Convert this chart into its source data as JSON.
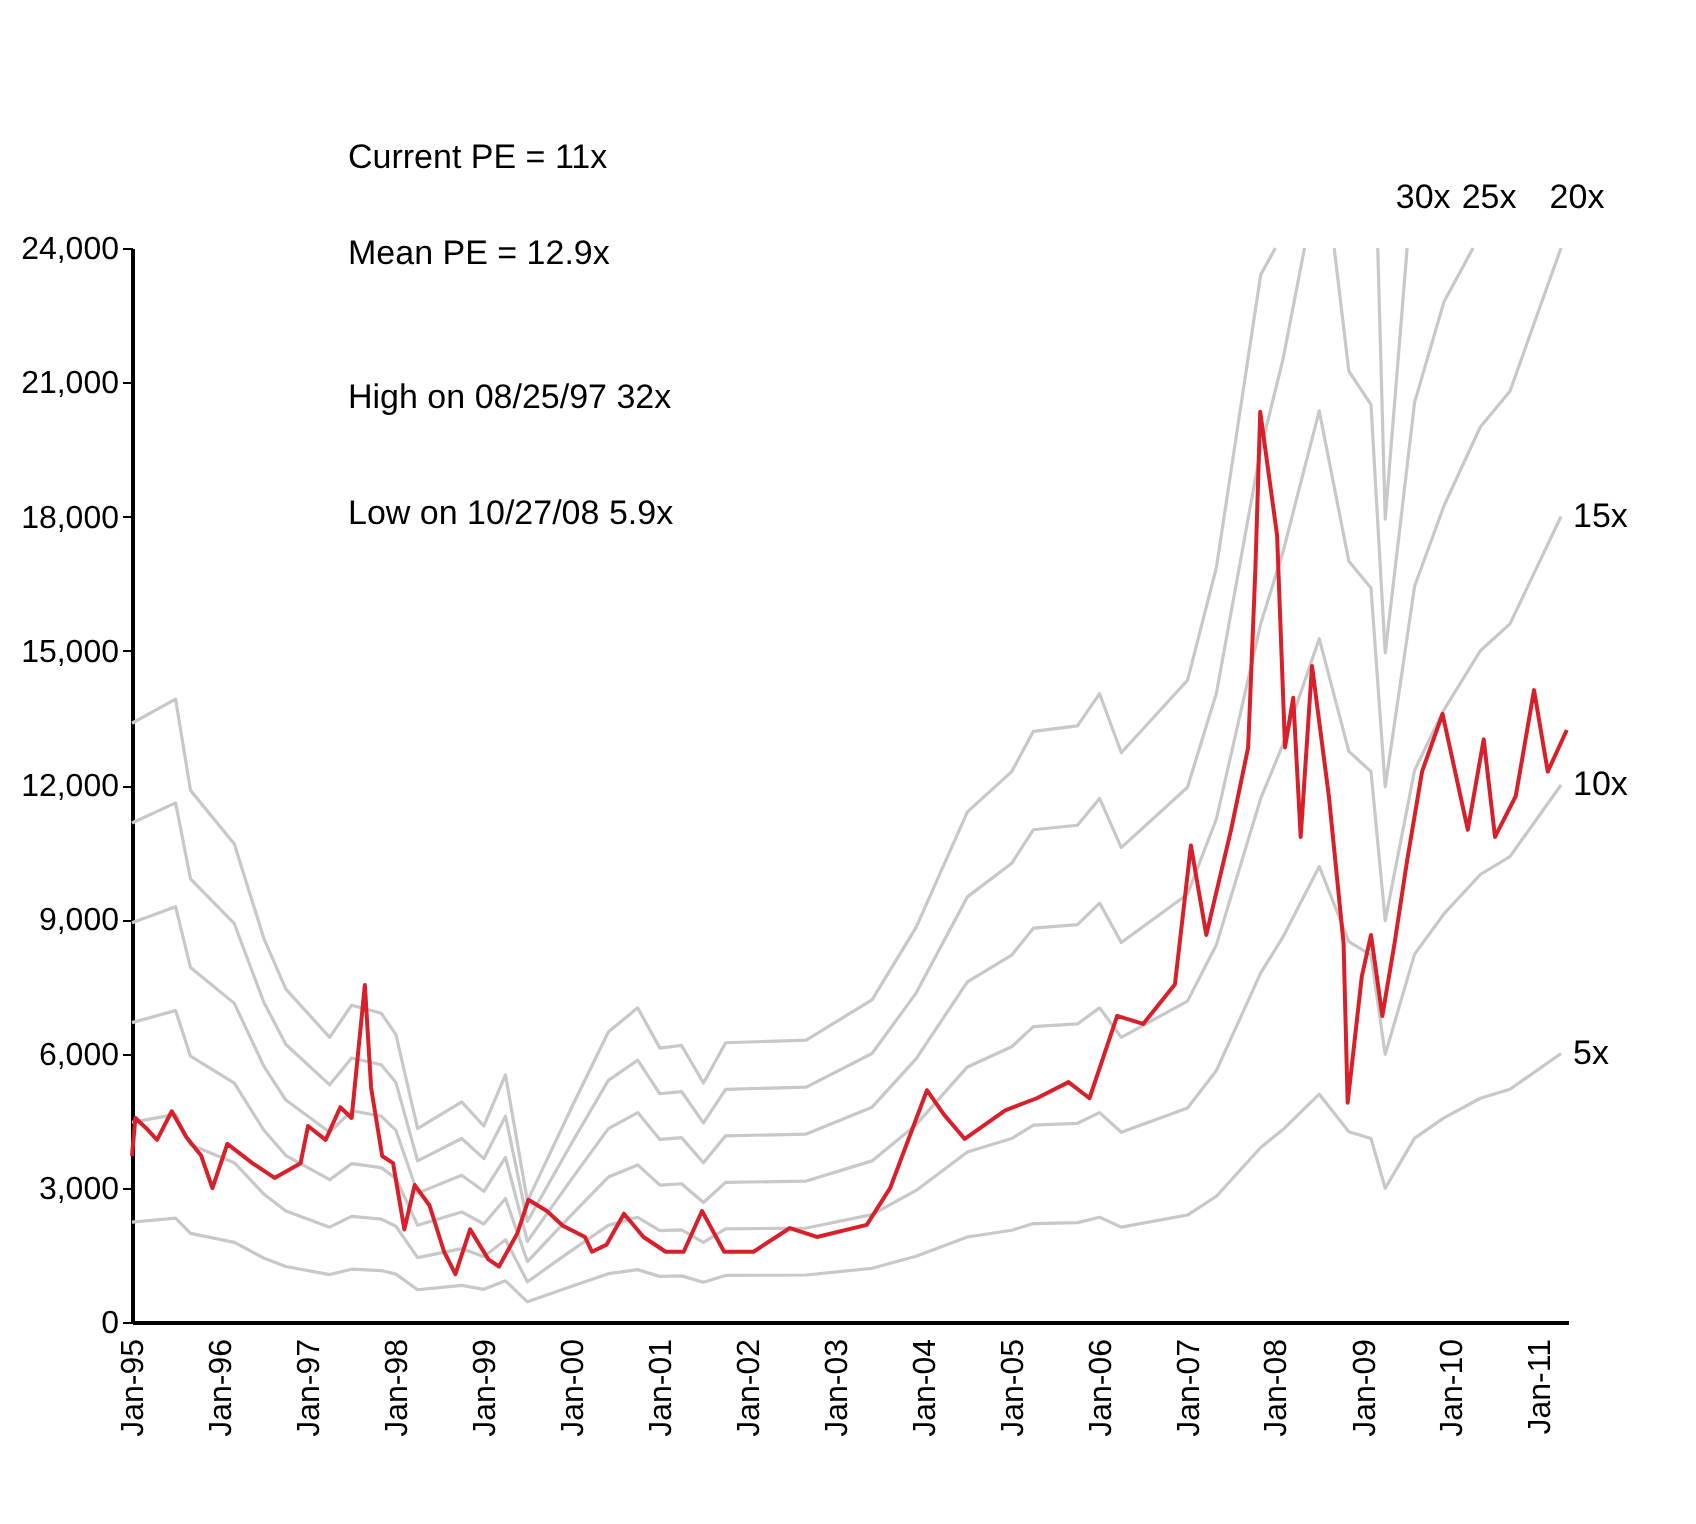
{
  "chart_data": {
    "type": "line",
    "x": [
      "1995-01",
      "1995-07",
      "1995-09",
      "1996-03",
      "1996-07",
      "1996-10",
      "1997-04",
      "1997-07",
      "1997-11",
      "1998-01",
      "1998-04",
      "1998-10",
      "1999-01",
      "1999-04",
      "1999-07",
      "2000-01",
      "2000-06",
      "2000-10",
      "2001-01",
      "2001-04",
      "2001-07",
      "2001-10",
      "2002-09",
      "2003-06",
      "2003-12",
      "2004-07",
      "2005-01",
      "2005-04",
      "2005-10",
      "2006-01",
      "2006-04",
      "2007-01",
      "2007-05",
      "2007-11",
      "2008-02",
      "2008-07",
      "2008-11",
      "2009-02",
      "2009-04",
      "2009-08",
      "2009-12",
      "2010-05",
      "2010-09",
      "2011-04"
    ],
    "series": [
      {
        "name": "5x",
        "color": "#c8c8c8",
        "values": [
          2230,
          2320,
          1980,
          1780,
          1430,
          1240,
          1060,
          1180,
          1150,
          1070,
          720,
          820,
          730,
          920,
          450,
          800,
          1080,
          1170,
          1020,
          1030,
          890,
          1040,
          1050,
          1200,
          1470,
          1900,
          2050,
          2200,
          2220,
          2340,
          2120,
          2390,
          2810,
          3900,
          4300,
          5090,
          4250,
          4100,
          2990,
          4110,
          4560,
          5000,
          5200,
          6000
        ]
      },
      {
        "name": "10x",
        "color": "#c8c8c8",
        "values": [
          4460,
          4640,
          3960,
          3560,
          2860,
          2480,
          2120,
          2360,
          2300,
          2140,
          1440,
          1640,
          1460,
          1840,
          900,
          1600,
          2160,
          2340,
          2040,
          2060,
          1780,
          2080,
          2100,
          2400,
          2940,
          3800,
          4100,
          4400,
          4440,
          4680,
          4240,
          4780,
          5620,
          7800,
          8600,
          10180,
          8500,
          8200,
          5980,
          8220,
          9120,
          10000,
          10400,
          12000
        ]
      },
      {
        "name": "15x",
        "color": "#c8c8c8",
        "values": [
          6690,
          6960,
          5940,
          5340,
          4290,
          3720,
          3180,
          3540,
          3450,
          3210,
          2160,
          2460,
          2190,
          2760,
          1350,
          2400,
          3240,
          3510,
          3060,
          3090,
          2670,
          3120,
          3150,
          3600,
          4410,
          5700,
          6150,
          6600,
          6660,
          7020,
          6360,
          7170,
          8430,
          11700,
          12900,
          15270,
          12750,
          12300,
          8970,
          12330,
          13680,
          15000,
          15600,
          18000
        ]
      },
      {
        "name": "20x",
        "color": "#c8c8c8",
        "values": [
          8920,
          9280,
          7920,
          7120,
          5720,
          4960,
          4240,
          4720,
          4600,
          4280,
          2880,
          3280,
          2920,
          3680,
          1800,
          3200,
          4320,
          4680,
          4080,
          4120,
          3560,
          4160,
          4200,
          4800,
          5880,
          7600,
          8200,
          8800,
          8880,
          9360,
          8480,
          9560,
          11240,
          15600,
          17200,
          20360,
          17000,
          16400,
          11960,
          16440,
          18240,
          20000,
          20800,
          24000
        ]
      },
      {
        "name": "25x",
        "color": "#c8c8c8",
        "x": [
          "1995-01",
          "1995-07",
          "1995-09",
          "1996-03",
          "1996-07",
          "1996-10",
          "1997-04",
          "1997-07",
          "1997-11",
          "1998-01",
          "1998-04",
          "1998-10",
          "1999-01",
          "1999-04",
          "1999-07",
          "2000-01",
          "2000-06",
          "2000-10",
          "2001-01",
          "2001-04",
          "2001-07",
          "2001-10",
          "2002-09",
          "2003-06",
          "2003-12",
          "2004-07",
          "2005-01",
          "2005-04",
          "2005-10",
          "2006-01",
          "2006-04",
          "2007-01",
          "2007-05",
          "2007-11",
          "2008-02",
          "2008-05",
          "2008-07",
          "2008-09",
          "2008-11",
          "2009-02",
          "2009-04",
          "2009-08",
          "2009-12",
          "2010-04"
        ],
        "values": [
          11150,
          11600,
          9900,
          8900,
          7150,
          6200,
          5300,
          5900,
          5750,
          5350,
          3600,
          4100,
          3650,
          4600,
          2250,
          4000,
          5400,
          5850,
          5100,
          5150,
          4450,
          5200,
          5250,
          6000,
          7350,
          9500,
          10250,
          11000,
          11100,
          11700,
          10600,
          11950,
          14050,
          19500,
          21500,
          24000,
          null,
          24000,
          21250,
          20500,
          14950,
          20550,
          22800,
          24000
        ]
      },
      {
        "name": "30x",
        "color": "#c8c8c8",
        "x": [
          "1995-01",
          "1995-07",
          "1995-09",
          "1996-03",
          "1996-07",
          "1996-10",
          "1997-04",
          "1997-07",
          "1997-11",
          "1998-01",
          "1998-04",
          "1998-10",
          "1999-01",
          "1999-04",
          "1999-07",
          "2000-01",
          "2000-06",
          "2000-10",
          "2001-01",
          "2001-04",
          "2001-07",
          "2001-10",
          "2002-09",
          "2003-06",
          "2003-12",
          "2004-07",
          "2005-01",
          "2005-04",
          "2005-10",
          "2006-01",
          "2006-04",
          "2007-01",
          "2007-05",
          "2007-11",
          "2008-01",
          "2008-07",
          "2009-03",
          "2009-04",
          "2009-07"
        ],
        "values": [
          13380,
          13920,
          11880,
          10680,
          8580,
          7440,
          6360,
          7080,
          6900,
          6420,
          4320,
          4920,
          4380,
          5520,
          2700,
          4800,
          6480,
          7020,
          6120,
          6180,
          5340,
          6240,
          6300,
          7200,
          8820,
          11400,
          12300,
          13200,
          13320,
          14040,
          12720,
          14340,
          16860,
          23400,
          24000,
          null,
          24000,
          17940,
          24000
        ]
      },
      {
        "color": "#d9202a",
        "x": [
          "1995-01-01",
          "1995-01-15",
          "1995-03-01",
          "1995-04-15",
          "1995-06-15",
          "1995-08-15",
          "1995-10-15",
          "1995-12-01",
          "1996-02-01",
          "1996-05-15",
          "1996-08-15",
          "1996-12-01",
          "1997-01-01",
          "1997-03-15",
          "1997-05-15",
          "1997-07-01",
          "1997-08-25",
          "1997-09-20",
          "1997-11-05",
          "1997-12-20",
          "1998-02-05",
          "1998-03-20",
          "1998-05-20",
          "1998-07-20",
          "1998-09-05",
          "1998-11-05",
          "1999-01-20",
          "1999-03-05",
          "1999-05-20",
          "1999-07-05",
          "1999-09-20",
          "1999-11-25",
          "2000-02-25",
          "2000-03-25",
          "2000-05-25",
          "2000-08-05",
          "2000-10-25",
          "2001-01-25",
          "2001-04-10",
          "2001-06-25",
          "2001-09-25",
          "2002-01-25",
          "2002-06-25",
          "2002-10-15",
          "2003-05-10",
          "2003-08-15",
          "2004-01-15",
          "2004-03-25",
          "2004-06-20",
          "2004-12-05",
          "2005-04-15",
          "2005-08-25",
          "2005-11-20",
          "2006-03-15",
          "2006-07-01",
          "2006-11-10",
          "2007-01-15",
          "2007-03-20",
          "2007-07-01",
          "2007-09-10",
          "2007-10-10",
          "2007-10-30",
          "2008-01-08",
          "2008-02-10",
          "2008-03-15",
          "2008-04-15",
          "2008-06-01",
          "2008-08-10",
          "2008-10-10",
          "2008-10-27",
          "2008-12-25",
          "2009-02-01",
          "2009-03-20",
          "2009-05-10",
          "2009-06-30",
          "2009-09-01",
          "2009-11-25",
          "2010-03-10",
          "2010-05-15",
          "2010-07-01",
          "2010-09-25",
          "2010-12-10",
          "2011-02-05",
          "2011-04-25"
        ],
        "values": [
          3710,
          4560,
          4330,
          4070,
          4710,
          4130,
          3720,
          2990,
          3980,
          3550,
          3220,
          3550,
          4380,
          4070,
          4800,
          4560,
          7530,
          5230,
          3710,
          3550,
          2070,
          3060,
          2610,
          1570,
          1070,
          2070,
          1400,
          1240,
          1980,
          2730,
          2480,
          2150,
          1900,
          1570,
          1730,
          2420,
          1900,
          1570,
          1570,
          2480,
          1570,
          1570,
          2100,
          1900,
          2170,
          2990,
          5180,
          4640,
          4090,
          4730,
          5000,
          5360,
          5000,
          6840,
          6660,
          7550,
          10650,
          8650,
          11000,
          12840,
          16850,
          20340,
          17580,
          12840,
          13950,
          10840,
          14660,
          11750,
          8470,
          4900,
          7730,
          8650,
          6840,
          8470,
          10280,
          12300,
          13590,
          11000,
          13020,
          10840,
          11750,
          14120,
          12300,
          13230
        ]
      }
    ],
    "xlim": [
      "1995-01-01",
      "2011-04-30"
    ],
    "xticks": [
      {
        "value": "1995-01-01",
        "label": "Jan-95"
      },
      {
        "value": "1996-01-01",
        "label": "Jan-96"
      },
      {
        "value": "1997-01-01",
        "label": "Jan-97"
      },
      {
        "value": "1998-01-01",
        "label": "Jan-98"
      },
      {
        "value": "1999-01-01",
        "label": "Jan-99"
      },
      {
        "value": "2000-01-01",
        "label": "Jan-00"
      },
      {
        "value": "2001-01-01",
        "label": "Jan-01"
      },
      {
        "value": "2002-01-01",
        "label": "Jan-02"
      },
      {
        "value": "2003-01-01",
        "label": "Jan-03"
      },
      {
        "value": "2004-01-01",
        "label": "Jan-04"
      },
      {
        "value": "2005-01-01",
        "label": "Jan-05"
      },
      {
        "value": "2006-01-01",
        "label": "Jan-06"
      },
      {
        "value": "2007-01-01",
        "label": "Jan-07"
      },
      {
        "value": "2008-01-01",
        "label": "Jan-08"
      },
      {
        "value": "2009-01-01",
        "label": "Jan-09"
      },
      {
        "value": "2010-01-01",
        "label": "Jan-10"
      },
      {
        "value": "2011-01-01",
        "label": "Jan-11"
      }
    ],
    "ylim": [
      0,
      24000
    ],
    "yticks": [
      {
        "value": 0,
        "label": "0"
      },
      {
        "value": 3000,
        "label": "3,000"
      },
      {
        "value": 6000,
        "label": "6,000"
      },
      {
        "value": 9000,
        "label": "9,000"
      },
      {
        "value": 12000,
        "label": "12,000"
      },
      {
        "value": 15000,
        "label": "15,000"
      },
      {
        "value": 18000,
        "label": "18,000"
      },
      {
        "value": 21000,
        "label": "21,000"
      },
      {
        "value": 24000,
        "label": "24,000"
      }
    ],
    "annotations": [
      "Current PE = 11x",
      "Mean PE = 12.9x",
      "High on  08/25/97  32x",
      "Low on  10/27/08  5.9x"
    ]
  }
}
